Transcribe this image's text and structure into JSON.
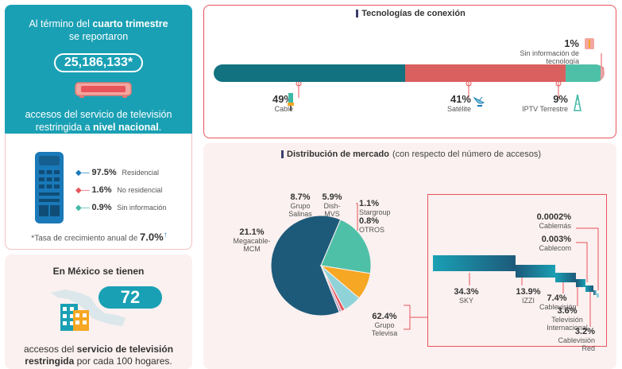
{
  "left_top": {
    "line1_pre": "Al término del ",
    "line1_bold": "cuarto trimestre",
    "line2": "se reportaron",
    "total": "25,186,133*",
    "line3": "accesos del servicio de televisión",
    "line4_pre": "restringida a ",
    "line4_bold": "nivel nacional",
    "line4_post": "."
  },
  "left_mid": {
    "items": [
      {
        "pct": "97.5%",
        "label": "Residencial",
        "color": "#1a79b8"
      },
      {
        "pct": "1.6%",
        "label": "No residencial",
        "color": "#e8545a"
      },
      {
        "pct": "0.9%",
        "label": "Sin información",
        "color": "#3fb8a6"
      }
    ],
    "rate_pre": "*Tasa de crecimiento anual de ",
    "rate_value": "7.0%",
    "rate_arrow": "↑"
  },
  "left_bottom": {
    "title": "En México se tienen",
    "value": "72",
    "text_pre": "accesos del ",
    "text_bold1": "servicio de televisión",
    "text_bold2": "restringida",
    "text_post": " por cada 100 hogares."
  },
  "tech": {
    "title": "Tecnologías de conexión",
    "segments": [
      {
        "pct": "49%",
        "label": "Cable",
        "share": 49,
        "color": "#13727f"
      },
      {
        "pct": "41%",
        "label": "Satélite",
        "share": 41,
        "color": "#d9605f"
      },
      {
        "pct": "9%",
        "label": "IPTV Terrestre",
        "share": 9,
        "color": "#4fc0a8"
      },
      {
        "pct": "1%",
        "label": "Sin información de tecnología",
        "share": 1,
        "color": "#e8a0a0"
      }
    ]
  },
  "market": {
    "title_bold": "Distribución de mercado",
    "title_rest": " (con respecto del número de accesos)",
    "pie": [
      {
        "pct": "62.4%",
        "name1": "Grupo",
        "name2": "Televisa",
        "value": 62.4,
        "color": "#1d5a7a"
      },
      {
        "pct": "21.1%",
        "name1": "Megacable-MCM",
        "name2": "",
        "value": 21.1,
        "color": "#4fc0a8"
      },
      {
        "pct": "8.7%",
        "name1": "Grupo",
        "name2": "Salinas",
        "value": 8.7,
        "color": "#f6a723"
      },
      {
        "pct": "5.9%",
        "name1": "Dish-MVS",
        "name2": "",
        "value": 5.9,
        "color": "#8fd3d9"
      },
      {
        "pct": "1.1%",
        "name1": "Stargroup",
        "name2": "",
        "value": 1.1,
        "color": "#e8545a"
      },
      {
        "pct": "0.8%",
        "name1": "OTROS",
        "name2": "",
        "value": 0.8,
        "color": "#b8a0c8"
      }
    ],
    "breakdown": [
      {
        "pct": "34.3%",
        "name1": "SKY",
        "name2": "",
        "name3": "",
        "value": 34.3
      },
      {
        "pct": "13.9%",
        "name1": "IZZI",
        "name2": "",
        "name3": "",
        "value": 13.9
      },
      {
        "pct": "7.4%",
        "name1": "Cablevisión",
        "name2": "",
        "name3": "",
        "value": 7.4
      },
      {
        "pct": "3.6%",
        "name1": "Televisión",
        "name2": "Internacional",
        "name3": "",
        "value": 3.6
      },
      {
        "pct": "3.2%",
        "name1": "Cablevisión",
        "name2": "Red",
        "name3": "",
        "value": 3.2
      },
      {
        "pct": "0.003%",
        "name1": "Cablecom",
        "name2": "",
        "name3": "",
        "value": 0.003
      },
      {
        "pct": "0.0002%",
        "name1": "Cablemás",
        "name2": "",
        "name3": "",
        "value": 0.0002
      }
    ]
  }
}
